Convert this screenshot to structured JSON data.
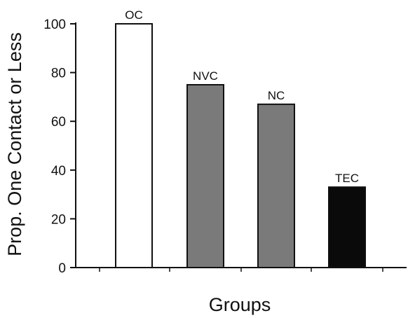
{
  "chart_data": {
    "type": "bar",
    "title": "",
    "xlabel": "Groups",
    "ylabel": "Prop. One Contact or Less",
    "ylim": [
      0,
      100
    ],
    "yticks": [
      0,
      20,
      40,
      60,
      80,
      100
    ],
    "grid": false,
    "legend": "none",
    "categories": [
      "OC",
      "NVC",
      "NC",
      "TEC"
    ],
    "values": [
      100,
      75,
      67,
      33
    ],
    "bar_colors": [
      "#ffffff",
      "#7a7a7a",
      "#7a7a7a",
      "#0a0a0a"
    ]
  }
}
